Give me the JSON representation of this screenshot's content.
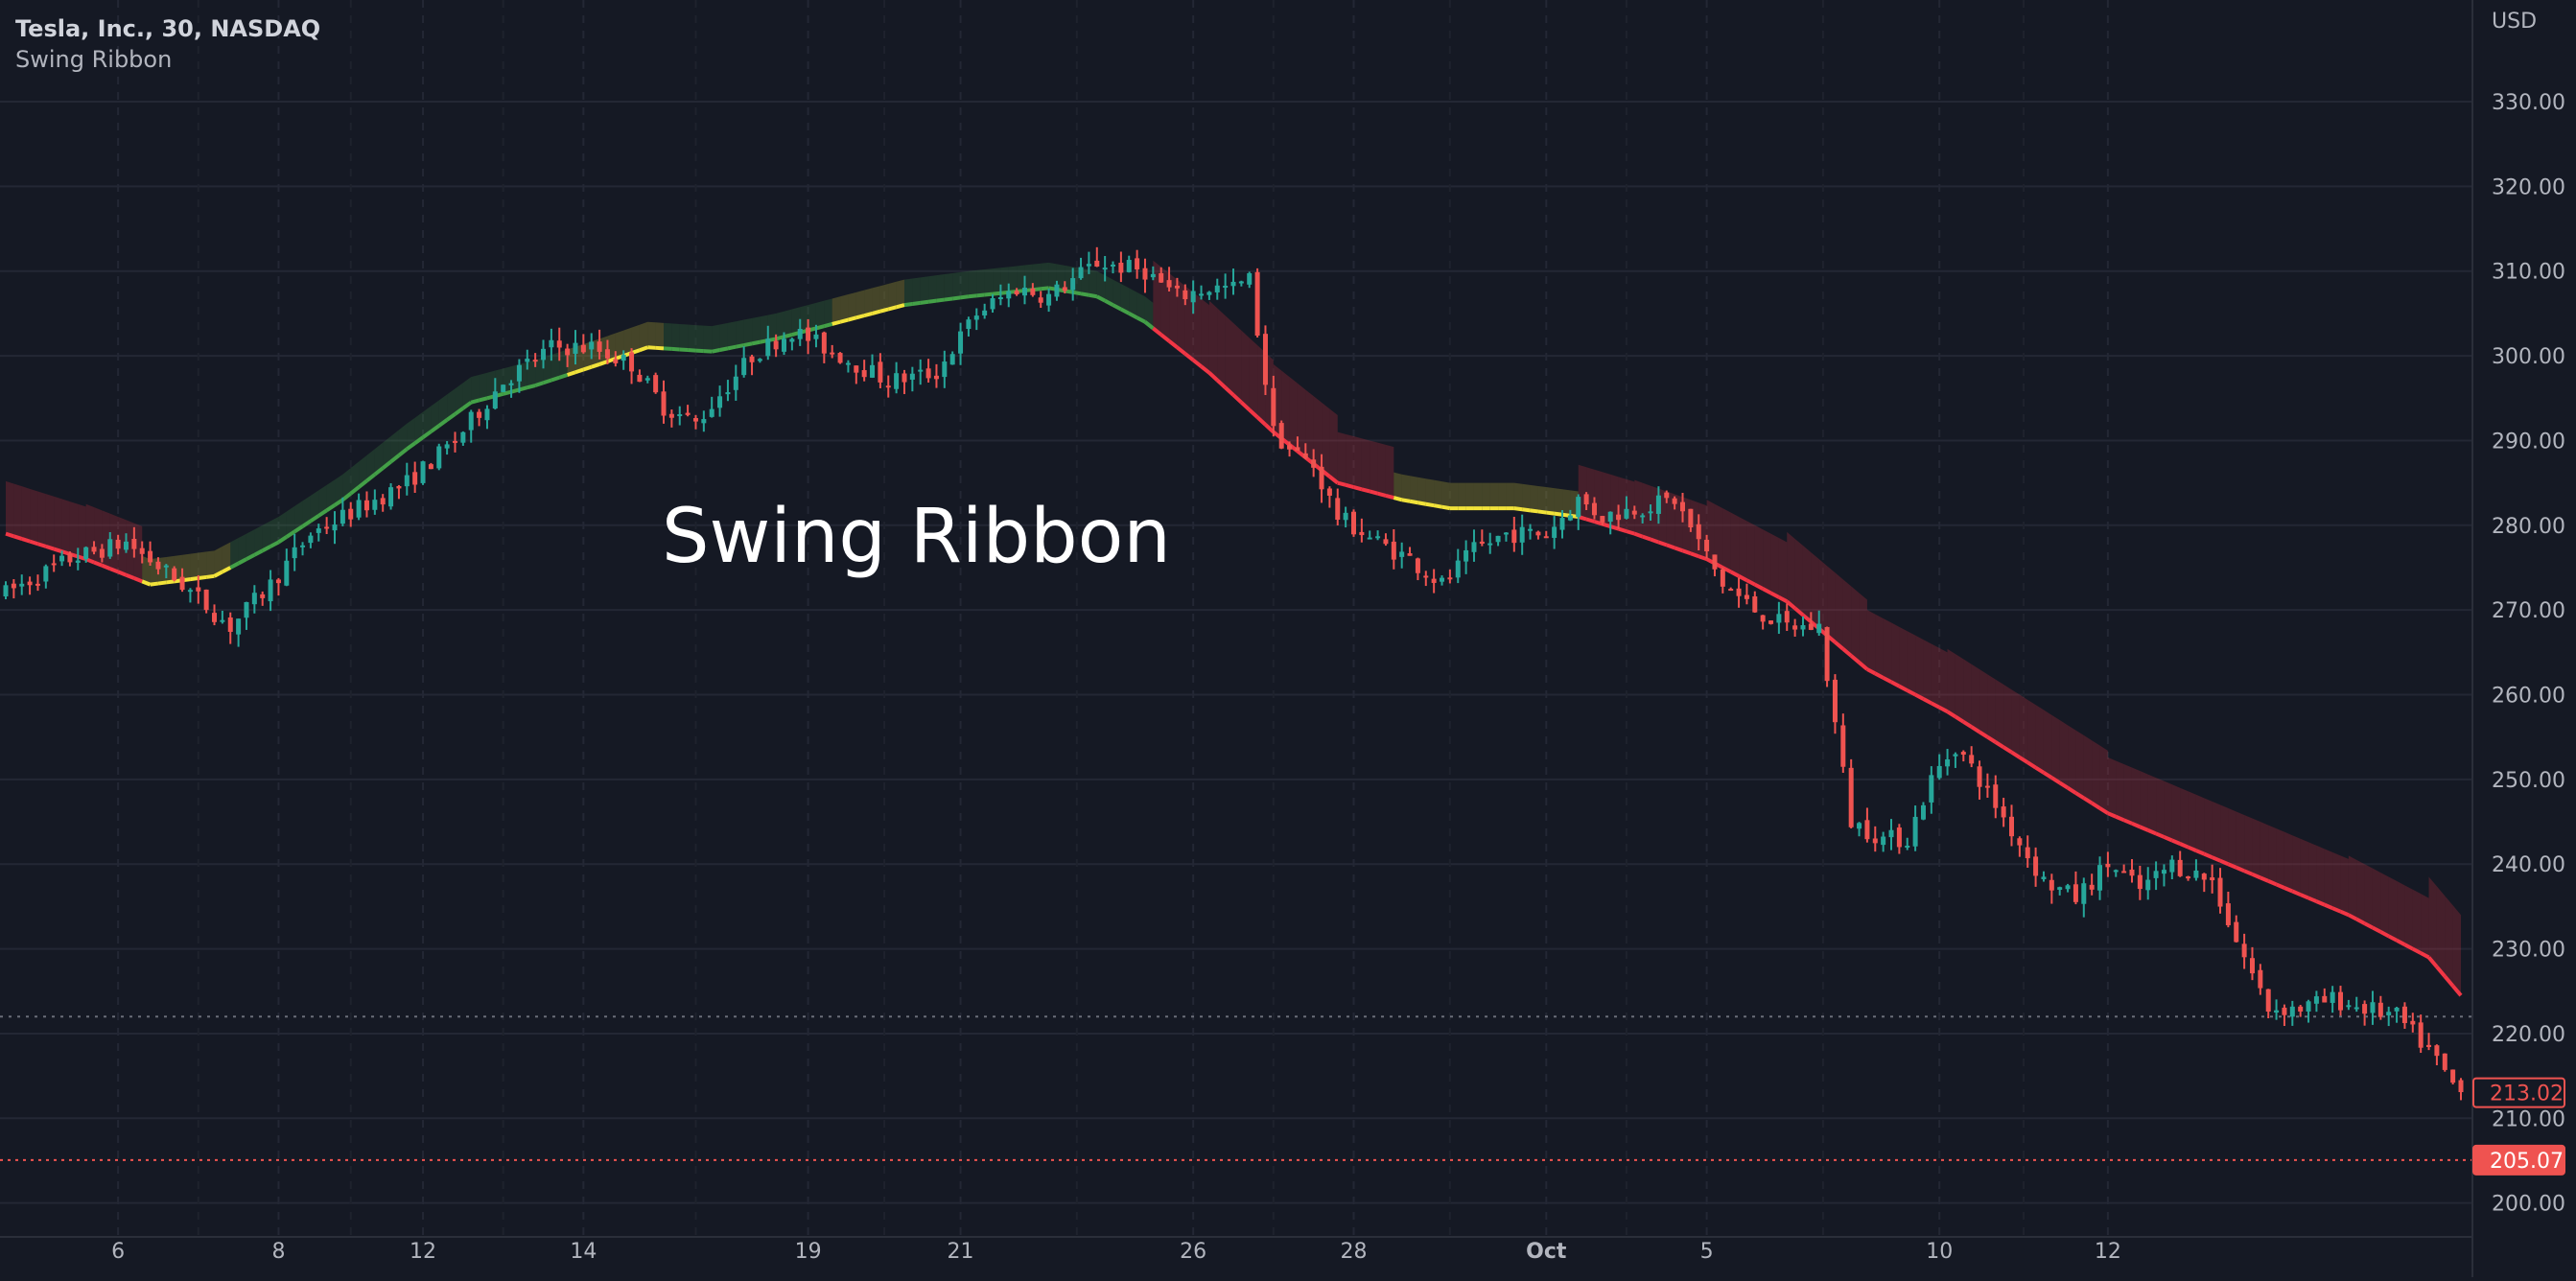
{
  "header": {
    "symbol_line": "Tesla, Inc., 30, NASDAQ",
    "indicator_name": "Swing Ribbon"
  },
  "watermark_text": "Swing Ribbon",
  "price_axis": {
    "currency": "USD",
    "ticks": [
      "330.00",
      "320.00",
      "310.00",
      "300.00",
      "290.00",
      "280.00",
      "270.00",
      "260.00",
      "250.00",
      "240.00",
      "230.00",
      "220.00",
      "210.00",
      "200.00"
    ],
    "last_price_label": "213.02",
    "marker_label": "205.07"
  },
  "time_axis": {
    "labels": [
      "6",
      "8",
      "12",
      "14",
      "19",
      "21",
      "26",
      "28",
      "Oct",
      "5",
      "10",
      "12"
    ]
  },
  "colors": {
    "background": "#151924",
    "grid": "#232734",
    "up": "#26a69a",
    "down": "#ef5350",
    "ribbon_bull": "#43a047",
    "ribbon_neutral": "#f2e33a",
    "ribbon_bear": "#f23645"
  },
  "chart_data": {
    "type": "candlestick",
    "title": "",
    "symbol": "Tesla, Inc., 30, NASDAQ",
    "indicator": "Swing Ribbon",
    "xlabel": "",
    "ylabel": "",
    "ylim": [
      196,
      342
    ],
    "grid": true,
    "x_ticks": [
      "6",
      "8",
      "12",
      "14",
      "19",
      "21",
      "26",
      "28",
      "Oct",
      "5",
      "10",
      "12"
    ],
    "y_ticks": [
      330,
      320,
      310,
      300,
      290,
      280,
      270,
      260,
      250,
      240,
      230,
      220,
      210,
      200
    ],
    "close_path": [
      [
        0,
        272
      ],
      [
        8,
        276
      ],
      [
        15,
        278
      ],
      [
        22,
        273
      ],
      [
        28,
        268
      ],
      [
        33,
        273
      ],
      [
        38,
        279
      ],
      [
        44,
        282
      ],
      [
        50,
        285
      ],
      [
        56,
        290
      ],
      [
        62,
        297
      ],
      [
        68,
        301
      ],
      [
        73,
        301
      ],
      [
        78,
        299
      ],
      [
        82,
        294
      ],
      [
        86,
        292
      ],
      [
        93,
        300
      ],
      [
        98,
        303
      ],
      [
        104,
        300
      ],
      [
        110,
        297
      ],
      [
        116,
        298
      ],
      [
        121,
        305
      ],
      [
        126,
        308
      ],
      [
        130,
        307
      ],
      [
        136,
        311
      ],
      [
        142,
        310
      ],
      [
        146,
        307
      ],
      [
        150,
        308
      ],
      [
        153,
        308
      ],
      [
        155,
        309
      ],
      [
        158,
        291
      ],
      [
        160,
        289
      ],
      [
        163,
        287
      ],
      [
        166,
        281
      ],
      [
        171,
        278
      ],
      [
        175,
        276
      ],
      [
        179,
        273
      ],
      [
        183,
        277
      ],
      [
        187,
        279
      ],
      [
        192,
        279
      ],
      [
        196,
        283
      ],
      [
        199,
        281
      ],
      [
        203,
        282
      ],
      [
        208,
        283
      ],
      [
        211,
        278
      ],
      [
        214,
        273
      ],
      [
        218,
        270
      ],
      [
        222,
        268
      ],
      [
        226,
        268
      ],
      [
        230,
        245
      ],
      [
        234,
        243
      ],
      [
        237,
        243
      ],
      [
        240,
        250
      ],
      [
        243,
        254
      ],
      [
        246,
        250
      ],
      [
        250,
        244
      ],
      [
        254,
        238
      ],
      [
        258,
        236
      ],
      [
        262,
        240
      ],
      [
        266,
        237
      ],
      [
        270,
        240
      ],
      [
        275,
        238
      ],
      [
        278,
        231
      ],
      [
        282,
        223
      ],
      [
        286,
        223
      ],
      [
        290,
        224
      ],
      [
        294,
        223
      ],
      [
        298,
        222
      ],
      [
        302,
        218
      ],
      [
        305,
        214
      ],
      [
        306,
        213.02
      ]
    ],
    "swing_ribbon": [
      [
        0,
        279
      ],
      [
        10,
        276
      ],
      [
        18,
        273
      ],
      [
        26,
        274
      ],
      [
        34,
        278
      ],
      [
        42,
        283
      ],
      [
        50,
        289
      ],
      [
        58,
        294.5
      ],
      [
        66,
        296.5
      ],
      [
        74,
        299
      ],
      [
        80,
        301
      ],
      [
        88,
        300.5
      ],
      [
        96,
        302
      ],
      [
        104,
        304
      ],
      [
        112,
        306
      ],
      [
        120,
        307
      ],
      [
        130,
        308
      ],
      [
        136,
        307
      ],
      [
        142,
        304
      ],
      [
        150,
        298
      ],
      [
        158,
        291
      ],
      [
        166,
        285
      ],
      [
        174,
        283
      ],
      [
        180,
        282
      ],
      [
        188,
        282
      ],
      [
        196,
        281
      ],
      [
        203,
        279
      ],
      [
        212,
        276
      ],
      [
        222,
        271
      ],
      [
        232,
        263
      ],
      [
        242,
        258
      ],
      [
        252,
        252
      ],
      [
        262,
        246
      ],
      [
        272,
        242
      ],
      [
        282,
        238
      ],
      [
        292,
        234
      ],
      [
        302,
        229
      ],
      [
        306,
        224.5
      ]
    ],
    "ribbon_state_segments": [
      {
        "from": 0,
        "to": 17,
        "state": "bear"
      },
      {
        "from": 17,
        "to": 28,
        "state": "neutral"
      },
      {
        "from": 28,
        "to": 70,
        "state": "bull"
      },
      {
        "from": 70,
        "to": 82,
        "state": "neutral"
      },
      {
        "from": 82,
        "to": 103,
        "state": "bull"
      },
      {
        "from": 103,
        "to": 112,
        "state": "neutral"
      },
      {
        "from": 112,
        "to": 143,
        "state": "bull"
      },
      {
        "from": 143,
        "to": 173,
        "state": "bear"
      },
      {
        "from": 173,
        "to": 196,
        "state": "neutral"
      },
      {
        "from": 196,
        "to": 306,
        "state": "bear"
      }
    ],
    "last_price": 213.02,
    "marker_price": 205.07,
    "marker_line_dotted_grey": 222,
    "bars": 307
  }
}
